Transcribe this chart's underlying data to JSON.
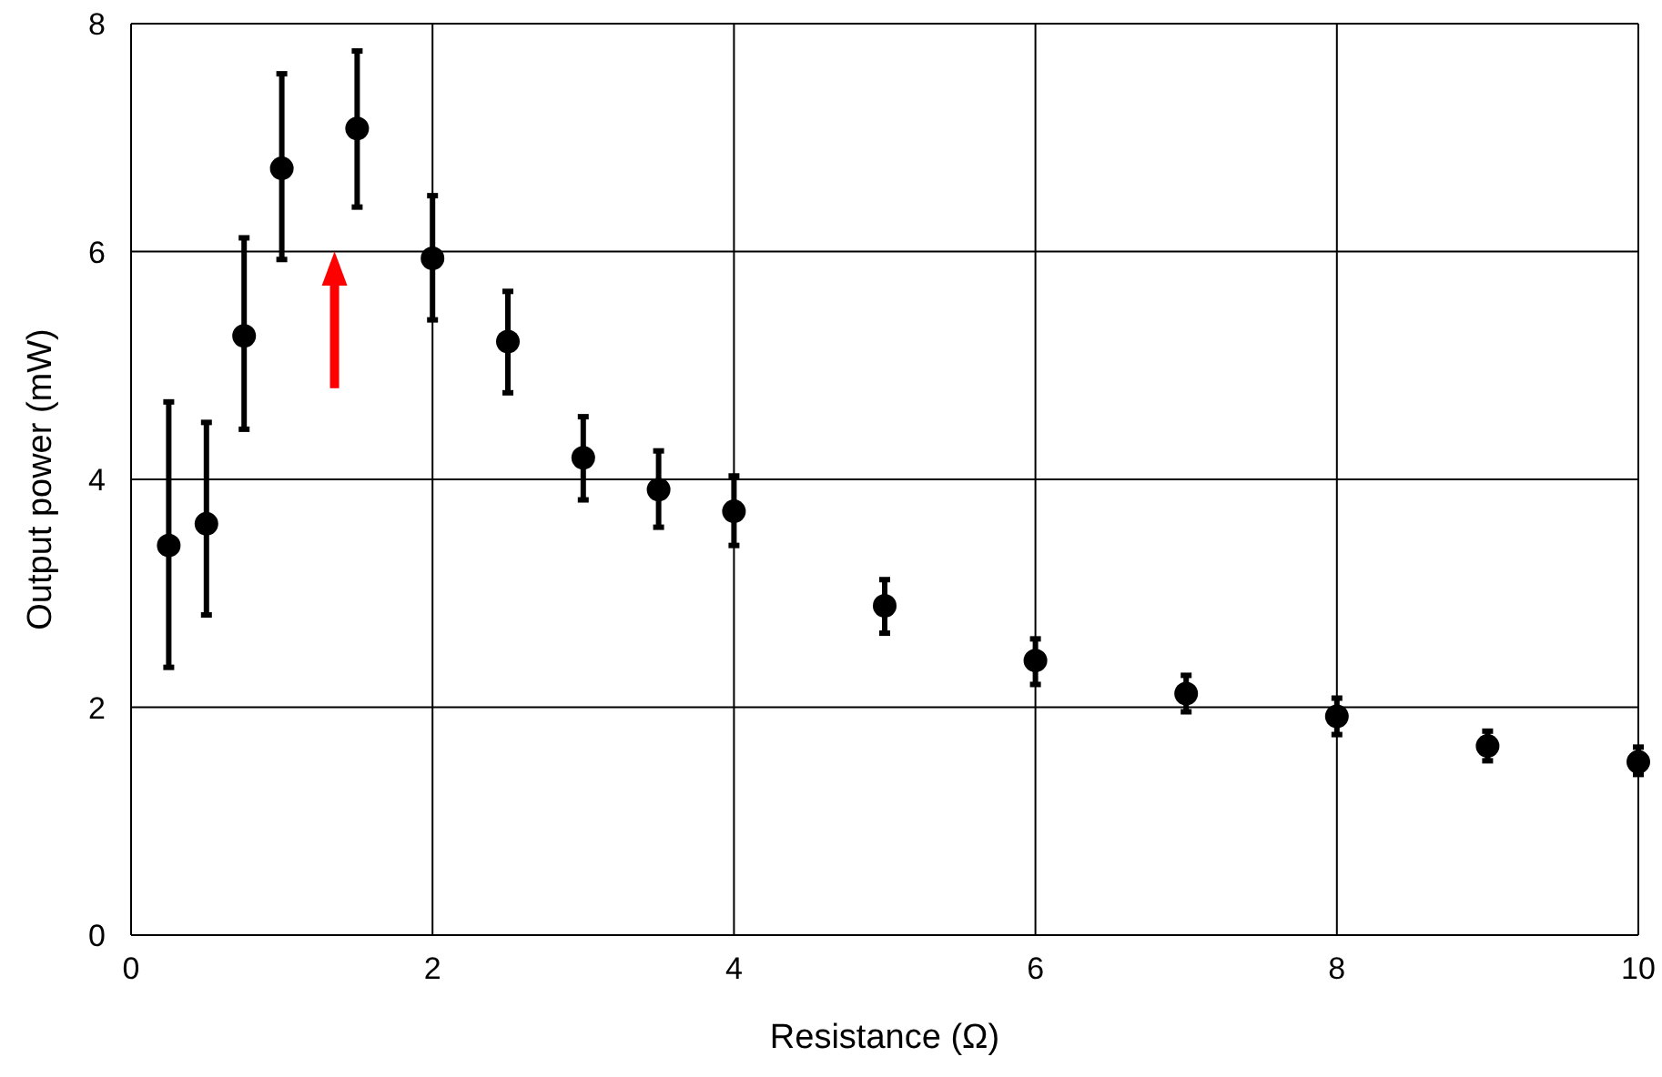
{
  "chart_data": {
    "type": "scatter",
    "xlabel": "Resistance (Ω)",
    "ylabel": "Output power (mW)",
    "x": [
      0.25,
      0.5,
      0.75,
      1,
      1.5,
      2,
      2.5,
      3,
      3.5,
      4,
      5,
      6,
      7,
      8,
      9,
      10
    ],
    "values": [
      3.42,
      3.61,
      5.26,
      6.73,
      7.08,
      5.94,
      5.21,
      4.19,
      3.91,
      3.72,
      2.89,
      2.41,
      2.12,
      1.92,
      1.66,
      1.52
    ],
    "errors": [
      [
        2.35,
        4.68
      ],
      [
        2.81,
        4.5
      ],
      [
        4.44,
        6.12
      ],
      [
        5.93,
        7.56
      ],
      [
        6.39,
        7.76
      ],
      [
        5.4,
        6.49
      ],
      [
        4.76,
        5.65
      ],
      [
        3.82,
        4.55
      ],
      [
        3.58,
        4.25
      ],
      [
        3.42,
        4.03
      ],
      [
        2.65,
        3.12
      ],
      [
        2.2,
        2.6
      ],
      [
        1.96,
        2.28
      ],
      [
        1.76,
        2.08
      ],
      [
        1.53,
        1.79
      ],
      [
        1.41,
        1.65
      ]
    ],
    "color": "#000000",
    "marker": "circle",
    "xlim": [
      0,
      10
    ],
    "xticks": [
      0,
      2,
      4,
      6,
      8,
      10
    ],
    "ylim": [
      0,
      8
    ],
    "yticks": [
      0,
      2,
      4,
      6,
      8
    ],
    "grid": true
  }
}
